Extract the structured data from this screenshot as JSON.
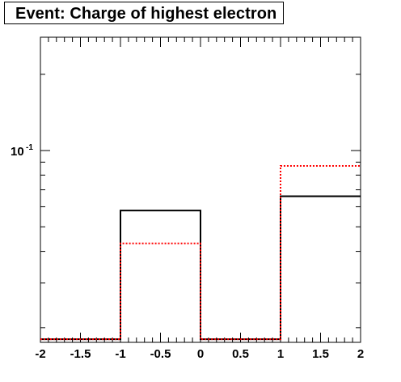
{
  "title": "Event: Charge of highest electron",
  "chart_data": {
    "type": "histogram",
    "title": "Event: Charge of highest electron",
    "x_axis": {
      "range": [
        -2,
        2
      ],
      "scale": "linear",
      "tick_labels": [
        "-2",
        "-1.5",
        "-1",
        "-0.5",
        "0",
        "0.5",
        "1",
        "1.5",
        "2"
      ],
      "tick_values": [
        -2,
        -1.5,
        -1,
        -0.5,
        0,
        0.5,
        1,
        1.5,
        2
      ]
    },
    "y_axis": {
      "scale": "log",
      "range": [
        0.0175,
        0.28
      ],
      "labels": [
        {
          "value": 0.1,
          "base": "10",
          "exponent": "-1"
        }
      ]
    },
    "bin_edges": [
      -2,
      -1,
      0,
      1,
      2
    ],
    "series": [
      {
        "values": [
          0.018,
          0.058,
          0.018,
          0.066
        ],
        "color": "#000000",
        "style": "solid"
      },
      {
        "values": [
          0.018,
          0.043,
          0.018,
          0.087
        ],
        "color": "#ff0000",
        "style": "dotted"
      }
    ],
    "grid": false,
    "legend": "none"
  }
}
